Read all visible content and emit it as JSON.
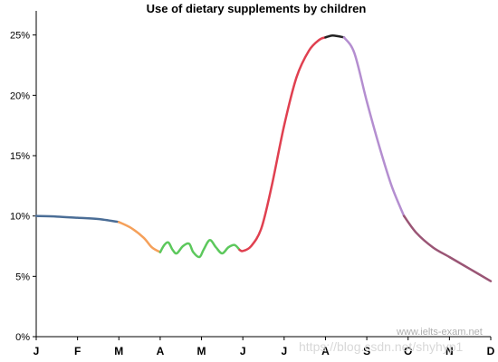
{
  "chart_data": {
    "type": "line",
    "title": "Use of dietary supplements by children",
    "xlabel": "",
    "ylabel": "",
    "categories": [
      "J",
      "F",
      "M",
      "A",
      "M",
      "J",
      "J",
      "A",
      "S",
      "O",
      "N",
      "D"
    ],
    "yticks": [
      "0%",
      "5%",
      "10%",
      "15%",
      "20%",
      "25%"
    ],
    "ylim": [
      0,
      27
    ],
    "grid": false,
    "legend": "none",
    "segments": [
      {
        "color": "#4a6d96",
        "points": [
          [
            0,
            10.0
          ],
          [
            0.5,
            9.95
          ],
          [
            1,
            9.85
          ],
          [
            1.5,
            9.75
          ],
          [
            2,
            9.5
          ]
        ]
      },
      {
        "color": "#f5a05a",
        "points": [
          [
            2,
            9.5
          ],
          [
            2.3,
            9.0
          ],
          [
            2.6,
            8.2
          ],
          [
            2.8,
            7.4
          ],
          [
            3,
            7.0
          ]
        ]
      },
      {
        "color": "#5cc85c",
        "points": [
          [
            3,
            7.0
          ],
          [
            3.1,
            7.6
          ],
          [
            3.2,
            7.8
          ],
          [
            3.3,
            7.2
          ],
          [
            3.4,
            6.9
          ],
          [
            3.55,
            7.5
          ],
          [
            3.7,
            7.7
          ],
          [
            3.8,
            7.0
          ],
          [
            3.95,
            6.6
          ],
          [
            4.05,
            7.2
          ],
          [
            4.2,
            8.0
          ],
          [
            4.35,
            7.4
          ],
          [
            4.5,
            6.9
          ],
          [
            4.65,
            7.4
          ],
          [
            4.8,
            7.6
          ],
          [
            4.92,
            7.2
          ]
        ]
      },
      {
        "color": "#e04050",
        "points": [
          [
            4.92,
            7.2
          ],
          [
            5.0,
            7.1
          ],
          [
            5.2,
            7.5
          ],
          [
            5.45,
            9.0
          ],
          [
            5.7,
            12.5
          ],
          [
            6.0,
            17.5
          ],
          [
            6.3,
            21.5
          ],
          [
            6.6,
            23.7
          ],
          [
            6.85,
            24.6
          ],
          [
            7.0,
            24.8
          ]
        ]
      },
      {
        "color": "#222222",
        "points": [
          [
            7.0,
            24.8
          ],
          [
            7.15,
            24.95
          ],
          [
            7.3,
            24.9
          ],
          [
            7.45,
            24.8
          ]
        ]
      },
      {
        "color": "#b48ed0",
        "points": [
          [
            7.45,
            24.8
          ],
          [
            7.7,
            23.5
          ],
          [
            8.0,
            19.5
          ],
          [
            8.3,
            15.8
          ],
          [
            8.6,
            12.5
          ],
          [
            8.9,
            10.0
          ]
        ]
      },
      {
        "color": "#9a5575",
        "points": [
          [
            8.9,
            10.0
          ],
          [
            9.2,
            8.6
          ],
          [
            9.6,
            7.4
          ],
          [
            10.0,
            6.6
          ],
          [
            10.5,
            5.6
          ],
          [
            11,
            4.6
          ]
        ]
      }
    ]
  },
  "watermarks": {
    "primary": "www.ielts-exam.net",
    "secondary": "https://blog.csdn.net/shyhyp1"
  }
}
